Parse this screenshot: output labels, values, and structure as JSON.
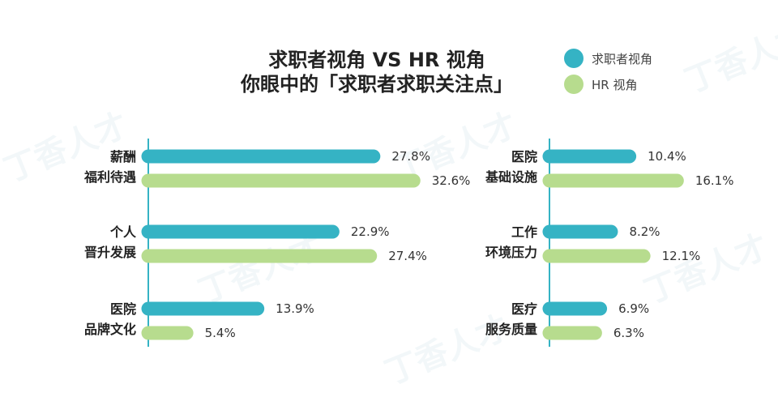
{
  "title_line1": "求职者视角 VS HR 视角",
  "title_line2": "你眼中的「求职者求职关注点」",
  "watermark": "丁香人才",
  "legend": [
    {
      "label": "求职者视角",
      "color": "#35b3c4"
    },
    {
      "label": "HR 视角",
      "color": "#b7dc8e"
    }
  ],
  "chart_data": {
    "type": "bar",
    "orientation": "horizontal",
    "series": [
      {
        "name": "求职者视角",
        "color": "#35b3c4"
      },
      {
        "name": "HR 视角",
        "color": "#b7dc8e"
      }
    ],
    "panels": [
      {
        "categories": [
          {
            "lines": [
              "薪酬",
              "福利待遇"
            ],
            "values": [
              27.8,
              32.6
            ],
            "labels": [
              "27.8%",
              "32.6%"
            ]
          },
          {
            "lines": [
              "个人",
              "晋升发展"
            ],
            "values": [
              22.9,
              27.4
            ],
            "labels": [
              "22.9%",
              "27.4%"
            ]
          },
          {
            "lines": [
              "医院",
              "品牌文化"
            ],
            "values": [
              13.9,
              5.4
            ],
            "labels": [
              "13.9%",
              "5.4%"
            ]
          }
        ]
      },
      {
        "categories": [
          {
            "lines": [
              "医院",
              "基础设施"
            ],
            "values": [
              10.4,
              16.1
            ],
            "labels": [
              "10.4%",
              "16.1%"
            ]
          },
          {
            "lines": [
              "工作",
              "环境压力"
            ],
            "values": [
              8.2,
              12.1
            ],
            "labels": [
              "8.2%",
              "12.1%"
            ]
          },
          {
            "lines": [
              "医疗",
              "服务质量"
            ],
            "values": [
              6.9,
              6.3
            ],
            "labels": [
              "6.9%",
              "6.3%"
            ]
          }
        ]
      }
    ]
  }
}
